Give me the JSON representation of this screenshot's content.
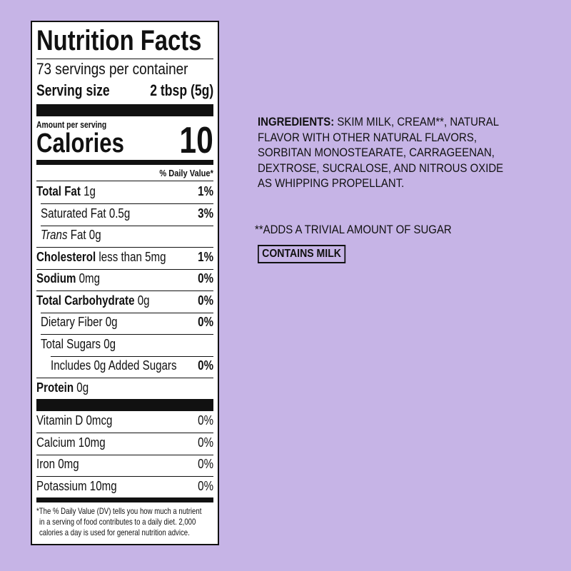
{
  "nutrition": {
    "title": "Nutrition Facts",
    "servings": "73 servings per container",
    "serving_size_label": "Serving size",
    "serving_size_value": "2 tbsp (5g)",
    "amount_per_serving": "Amount per serving",
    "calories_label": "Calories",
    "calories_value": "10",
    "daily_value_header": "% Daily Value*",
    "rows": [
      {
        "bold": "Total Fat",
        "text": " 1g",
        "dv": "1%"
      },
      {
        "bold": "",
        "text": "Saturated Fat 0.5g",
        "dv": "3%"
      },
      {
        "italic": "Trans",
        "text": " Fat 0g",
        "dv": ""
      },
      {
        "bold": "Cholesterol",
        "text": " less than 5mg",
        "dv": "1%"
      },
      {
        "bold": "Sodium",
        "text": " 0mg",
        "dv": "0%"
      },
      {
        "bold": "Total Carbohydrate",
        "text": " 0g",
        "dv": "0%"
      },
      {
        "bold": "",
        "text": "Dietary Fiber 0g",
        "dv": "0%"
      },
      {
        "bold": "",
        "text": "Total Sugars 0g",
        "dv": ""
      },
      {
        "bold": "",
        "text": "Includes 0g Added Sugars",
        "dv": "0%"
      },
      {
        "bold": "Protein",
        "text": " 0g",
        "dv": ""
      }
    ],
    "vitamins": [
      {
        "text": "Vitamin D 0mcg",
        "dv": "0%"
      },
      {
        "text": "Calcium 10mg",
        "dv": "0%"
      },
      {
        "text": "Iron 0mg",
        "dv": "0%"
      },
      {
        "text": "Potassium 10mg",
        "dv": "0%"
      }
    ],
    "footnote": [
      "*The % Daily Value (DV) tells you how much a nutrient",
      "in a serving of food contributes to a daily diet. 2,000",
      "calories a day is used for general nutrition advice."
    ]
  },
  "ingredients": {
    "label": "INGREDIENTS:",
    "text": " SKIM MILK, CREAM**, NATURAL FLAVOR WITH OTHER NATURAL FLAVORS, SORBITAN MONOSTEARATE, CARRAGEENAN, DEXTROSE, SUCRALOSE, AND NITROUS OXIDE AS WHIPPING PROPELLANT.",
    "note": "**ADDS A TRIVIAL AMOUNT OF SUGAR",
    "allergen": "CONTAINS MILK"
  },
  "colors": {
    "background": "#c6b4e6",
    "ink": "#111111"
  }
}
